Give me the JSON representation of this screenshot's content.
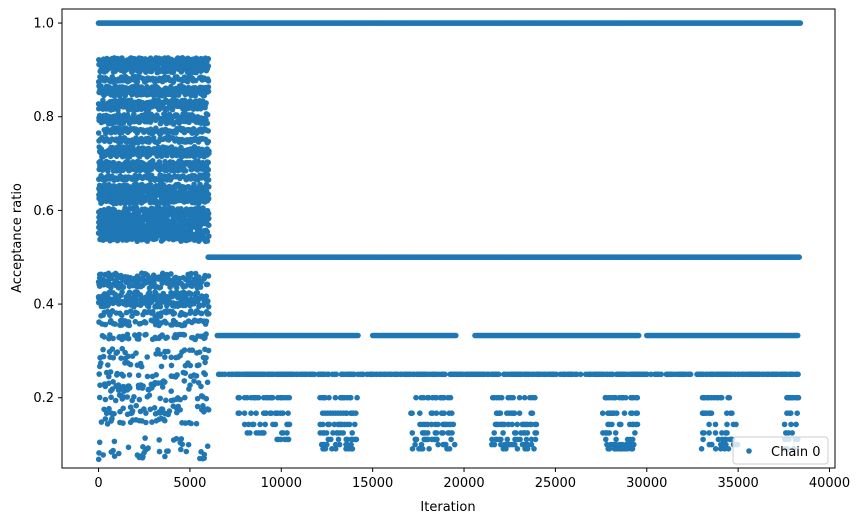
{
  "chart_data": {
    "type": "scatter",
    "xlabel": "Iteration",
    "ylabel": "Acceptance ratio",
    "xlim": [
      -2000,
      40300
    ],
    "ylim": [
      0.05,
      1.03
    ],
    "x_ticks": [
      0,
      5000,
      10000,
      15000,
      20000,
      25000,
      30000,
      35000,
      40000
    ],
    "x_tick_labels": [
      "0",
      "5000",
      "10000",
      "15000",
      "20000",
      "25000",
      "30000",
      "35000",
      "40000"
    ],
    "y_ticks": [
      0.2,
      0.4,
      0.6,
      0.8,
      1.0
    ],
    "y_tick_labels": [
      "0.2",
      "0.4",
      "0.6",
      "0.8",
      "1.0"
    ],
    "grid": false,
    "legend_position": "bottom-right",
    "marker_color": "#1f77b4",
    "series": [
      {
        "name": "Chain 0",
        "description_phases": {
          "burn_in_end": 6000,
          "total_iterations": 38400
        },
        "constant_levels_full_range": [
          {
            "y": 1.0,
            "x_start": 0,
            "x_end": 38400
          }
        ],
        "burn_in_levels": [
          0.92,
          0.91,
          0.9,
          0.88,
          0.86,
          0.85,
          0.83,
          0.82,
          0.8,
          0.79,
          0.77,
          0.75,
          0.73,
          0.72,
          0.7,
          0.69,
          0.67,
          0.65,
          0.64,
          0.63,
          0.62,
          0.6,
          0.59,
          0.58,
          0.57,
          0.56,
          0.55,
          0.54,
          0.46,
          0.45,
          0.44,
          0.42,
          0.41,
          0.4,
          0.38,
          0.36,
          0.33,
          0.3,
          0.29,
          0.27,
          0.25,
          0.23,
          0.22,
          0.2,
          0.18,
          0.17,
          0.15,
          0.11,
          0.1,
          0.09,
          0.08,
          0.07
        ],
        "post_burn_in_segments": [
          {
            "y": 0.5,
            "x_start": 6000,
            "x_end": 38400
          },
          {
            "y": 0.333,
            "x_start": 6500,
            "x_end": 14200
          },
          {
            "y": 0.333,
            "x_start": 15000,
            "x_end": 19600
          },
          {
            "y": 0.333,
            "x_start": 20600,
            "x_end": 29600
          },
          {
            "y": 0.333,
            "x_start": 30000,
            "x_end": 38300
          },
          {
            "y": 0.25,
            "x_start": 6500,
            "x_end": 38300
          },
          {
            "y": 0.2,
            "x_start": 7500,
            "x_end": 38300
          },
          {
            "y": 0.167,
            "x_start": 7500,
            "x_end": 38300
          },
          {
            "y": 0.143,
            "x_start": 8000,
            "x_end": 38300
          },
          {
            "y": 0.125,
            "x_start": 8000,
            "x_end": 38300
          },
          {
            "y": 0.111,
            "x_start": 9000,
            "x_end": 38300
          },
          {
            "y": 0.1,
            "x_start": 12000,
            "x_end": 38300
          },
          {
            "y": 0.091,
            "x_start": 12000,
            "x_end": 38300
          }
        ],
        "sparse_clusters": [
          {
            "x_start": 7500,
            "x_end": 10500
          },
          {
            "x_start": 12000,
            "x_end": 14200
          },
          {
            "x_start": 17000,
            "x_end": 19500
          },
          {
            "x_start": 21500,
            "x_end": 24000
          },
          {
            "x_start": 27500,
            "x_end": 29500
          },
          {
            "x_start": 33000,
            "x_end": 35000
          },
          {
            "x_start": 37500,
            "x_end": 38400
          }
        ]
      }
    ]
  },
  "legend": {
    "label": "Chain 0"
  }
}
